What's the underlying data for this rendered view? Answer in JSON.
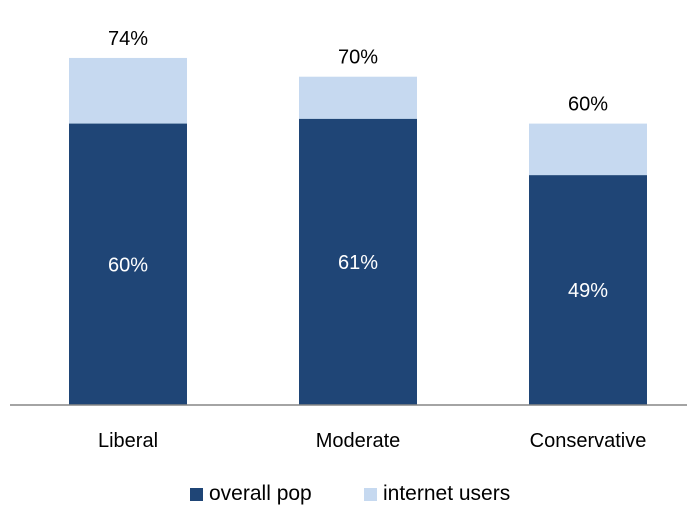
{
  "chart_data": {
    "type": "bar",
    "stacked": false,
    "overlapping": true,
    "categories": [
      "Liberal",
      "Moderate",
      "Conservative"
    ],
    "series": [
      {
        "name": "overall pop",
        "values": [
          60,
          61,
          49
        ],
        "labels": [
          "60%",
          "61%",
          "49%"
        ],
        "color": "#1f4576"
      },
      {
        "name": "internet users",
        "values": [
          74,
          70,
          60
        ],
        "labels": [
          "74%",
          "70%",
          "60%"
        ],
        "color": "#c6d9f0"
      }
    ],
    "ylim": [
      0,
      80
    ],
    "grid": false,
    "legend": {
      "position": "bottom",
      "entries": [
        "overall pop",
        "internet users"
      ]
    }
  }
}
